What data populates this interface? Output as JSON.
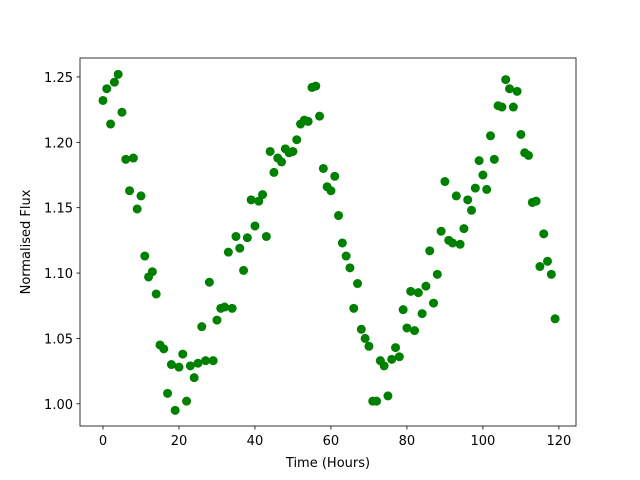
{
  "chart_data": {
    "type": "scatter",
    "xlabel": "Time (Hours)",
    "ylabel": "Normalised Flux",
    "color": "#008000",
    "x": [
      0,
      1,
      2,
      3,
      4,
      5,
      6,
      7,
      8,
      9,
      10,
      11,
      12,
      13,
      14,
      15,
      16,
      17,
      18,
      19,
      20,
      21,
      22,
      23,
      24,
      25,
      26,
      27,
      28,
      29,
      30,
      31,
      32,
      33,
      34,
      35,
      36,
      37,
      38,
      39,
      40,
      41,
      42,
      43,
      44,
      45,
      46,
      47,
      48,
      49,
      50,
      51,
      52,
      53,
      54,
      55,
      56,
      57,
      58,
      59,
      60,
      61,
      62,
      63,
      64,
      65,
      66,
      67,
      68,
      69,
      70,
      71,
      72,
      73,
      74,
      75,
      76,
      77,
      78,
      79,
      80,
      81,
      82,
      83,
      84,
      85,
      86,
      87,
      88,
      89,
      90,
      91,
      92,
      93,
      94,
      95,
      96,
      97,
      98,
      99,
      100,
      101,
      102,
      103,
      104,
      105,
      106,
      107,
      108,
      109,
      110,
      111,
      112,
      113,
      114,
      115,
      116,
      117,
      118,
      119
    ],
    "values": [
      1.232,
      1.241,
      1.214,
      1.246,
      1.252,
      1.223,
      1.187,
      1.163,
      1.188,
      1.149,
      1.159,
      1.113,
      1.097,
      1.101,
      1.084,
      1.045,
      1.042,
      1.008,
      1.03,
      0.995,
      1.028,
      1.038,
      1.002,
      1.029,
      1.02,
      1.031,
      1.059,
      1.033,
      1.093,
      1.033,
      1.064,
      1.073,
      1.074,
      1.116,
      1.073,
      1.128,
      1.119,
      1.102,
      1.127,
      1.156,
      1.136,
      1.155,
      1.16,
      1.128,
      1.193,
      1.177,
      1.188,
      1.185,
      1.195,
      1.192,
      1.193,
      1.202,
      1.214,
      1.217,
      1.216,
      1.242,
      1.243,
      1.22,
      1.18,
      1.166,
      1.163,
      1.174,
      1.144,
      1.123,
      1.113,
      1.104,
      1.073,
      1.092,
      1.057,
      1.05,
      1.044,
      1.002,
      1.002,
      1.033,
      1.029,
      1.006,
      1.034,
      1.043,
      1.036,
      1.072,
      1.058,
      1.086,
      1.056,
      1.085,
      1.069,
      1.09,
      1.117,
      1.077,
      1.099,
      1.132,
      1.17,
      1.125,
      1.123,
      1.159,
      1.122,
      1.134,
      1.156,
      1.148,
      1.165,
      1.186,
      1.175,
      1.164,
      1.205,
      1.187,
      1.228,
      1.227,
      1.248,
      1.241,
      1.227,
      1.239,
      1.206,
      1.192,
      1.19,
      1.154,
      1.155,
      1.105,
      1.13,
      1.109,
      1.099,
      1.065
    ],
    "xlim": [
      -6.05,
      124.5
    ],
    "ylim": [
      0.983,
      1.2645
    ],
    "xticks": [
      0,
      20,
      40,
      60,
      80,
      100,
      120
    ],
    "yticks": [
      {
        "value": 1,
        "label": "1.00"
      },
      1.05,
      {
        "value": 1.1,
        "label": "1.10"
      },
      1.15,
      {
        "value": 1.2,
        "label": "1.20"
      },
      1.25
    ]
  }
}
